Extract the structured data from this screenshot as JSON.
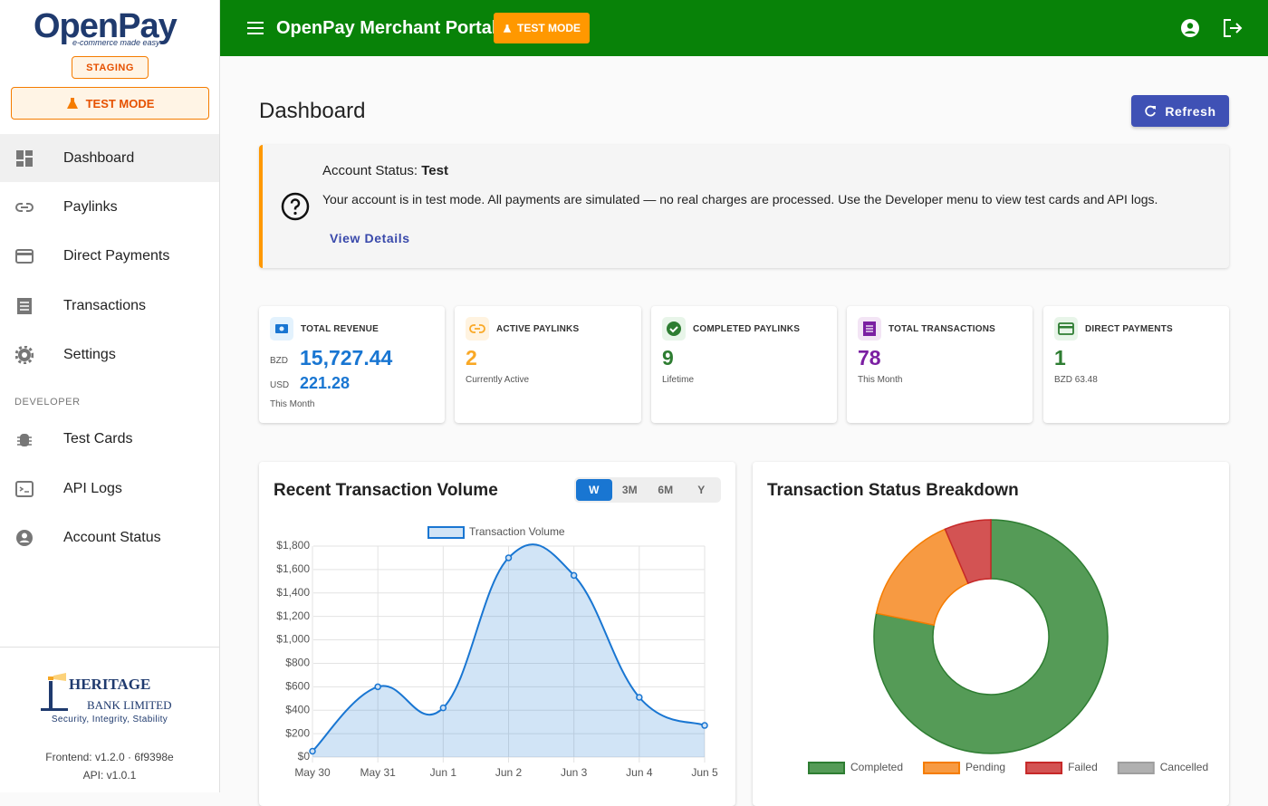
{
  "sidebar": {
    "logo": "OpenPay",
    "tagline": "e-commerce made easy",
    "env_badge": "STAGING",
    "test_mode": "TEST MODE",
    "nav": [
      "Dashboard",
      "Paylinks",
      "Direct Payments",
      "Transactions",
      "Settings"
    ],
    "developer_heading": "DEVELOPER",
    "developer_nav": [
      "Test Cards",
      "API Logs",
      "Account Status"
    ],
    "bank_name_1": "HERITAGE",
    "bank_name_2": "BANK LIMITED",
    "bank_motto": "Security, Integrity, Stability",
    "frontend_version": "Frontend: v1.2.0 · 6f9398e",
    "api_version": "API: v1.0.1"
  },
  "topbar": {
    "title": "OpenPay Merchant Portal",
    "badge": "TEST MODE"
  },
  "page": {
    "title": "Dashboard",
    "refresh": "Refresh"
  },
  "alert": {
    "title_prefix": "Account Status:",
    "title_value": "Test",
    "message": "Your account is in test mode. All payments are simulated — no real charges are processed. Use the Developer menu to view test cards and API logs.",
    "link": "View Details"
  },
  "stats": [
    {
      "label": "TOTAL REVENUE",
      "currency_1": "BZD",
      "value": "15,727.44",
      "currency_2": "USD",
      "value_2": "221.28",
      "sub": "This Month"
    },
    {
      "label": "ACTIVE PAYLINKS",
      "value": "2",
      "sub": "Currently Active"
    },
    {
      "label": "COMPLETED PAYLINKS",
      "value": "9",
      "sub": "Lifetime"
    },
    {
      "label": "TOTAL TRANSACTIONS",
      "value": "78",
      "sub": "This Month"
    },
    {
      "label": "DIRECT PAYMENTS",
      "value": "1",
      "sub": "BZD 63.48"
    }
  ],
  "chart_data": [
    {
      "type": "line",
      "title": "Recent Transaction Volume",
      "ranges": [
        "W",
        "3M",
        "6M",
        "Y"
      ],
      "active_range": "W",
      "categories": [
        "May 30",
        "May 31",
        "Jun 1",
        "Jun 2",
        "Jun 3",
        "Jun 4",
        "Jun 5"
      ],
      "series": [
        {
          "name": "Transaction Volume",
          "color": "#1976d2",
          "values": [
            50,
            600,
            420,
            1700,
            1550,
            510,
            270
          ]
        }
      ],
      "ylim": [
        0,
        1800
      ],
      "yticks": [
        {
          "value": 0,
          "label": "$0"
        },
        {
          "value": 200,
          "label": "$200"
        },
        {
          "value": 400,
          "label": "$400"
        },
        {
          "value": 600,
          "label": "$600"
        },
        {
          "value": 800,
          "label": "$800"
        },
        {
          "value": 1000,
          "label": "$1,000"
        },
        {
          "value": 1200,
          "label": "$1,200"
        },
        {
          "value": 1400,
          "label": "$1,400"
        },
        {
          "value": 1600,
          "label": "$1,600"
        },
        {
          "value": 1800,
          "label": "$1,800"
        }
      ],
      "grid": true,
      "legend": "top"
    },
    {
      "type": "doughnut",
      "title": "Transaction Status Breakdown",
      "categories": [
        "Completed",
        "Pending",
        "Failed",
        "Cancelled"
      ],
      "values": [
        61,
        12,
        5,
        0
      ],
      "colors": [
        "#559b57",
        "#f79a42",
        "#d35353",
        "#b0b0b0"
      ],
      "borders": [
        "#2e7d32",
        "#f57c00",
        "#c62828",
        "#9e9e9e"
      ],
      "legend": "bottom"
    }
  ]
}
